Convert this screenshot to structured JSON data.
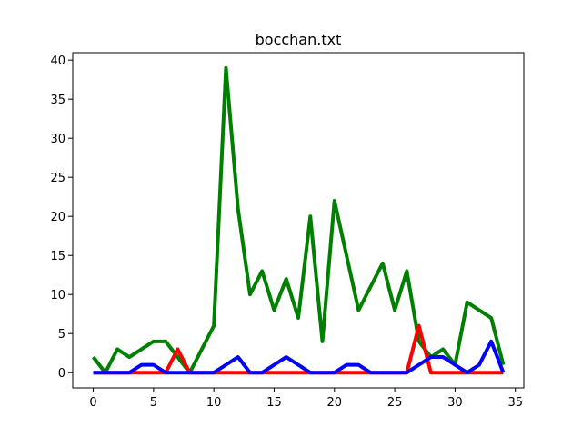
{
  "chart_data": {
    "type": "line",
    "title": "bocchan.txt",
    "x": [
      0,
      1,
      2,
      3,
      4,
      5,
      6,
      7,
      8,
      9,
      10,
      11,
      12,
      13,
      14,
      15,
      16,
      17,
      18,
      19,
      20,
      21,
      22,
      23,
      24,
      25,
      26,
      27,
      28,
      29,
      30,
      31,
      32,
      33,
      34
    ],
    "series": [
      {
        "color": "#008000",
        "values": [
          2,
          0,
          3,
          2,
          3,
          4,
          4,
          2,
          0,
          3,
          6,
          39,
          21,
          10,
          13,
          8,
          12,
          7,
          20,
          4,
          22,
          15,
          8,
          11,
          14,
          8,
          13,
          4,
          2,
          3,
          1,
          9,
          8,
          7,
          1
        ]
      },
      {
        "color": "#ff0000",
        "values": [
          0,
          0,
          0,
          0,
          0,
          0,
          0,
          3,
          0,
          0,
          0,
          0,
          0,
          0,
          0,
          0,
          0,
          0,
          0,
          0,
          0,
          0,
          0,
          0,
          0,
          0,
          0,
          6,
          0,
          0,
          0,
          0,
          0,
          0,
          0
        ]
      },
      {
        "color": "#0000ff",
        "values": [
          0,
          0,
          0,
          0,
          1,
          1,
          0,
          0,
          0,
          0,
          0,
          1,
          2,
          0,
          0,
          1,
          2,
          1,
          0,
          0,
          0,
          1,
          1,
          0,
          0,
          0,
          0,
          1,
          2,
          2,
          1,
          0,
          1,
          4,
          0
        ]
      }
    ],
    "xlim": [
      -1.7,
      35.7
    ],
    "xticks": [
      0,
      5,
      10,
      15,
      20,
      25,
      30,
      35
    ],
    "ylim": [
      -1.95,
      40.95
    ],
    "yticks": [
      0,
      5,
      10,
      15,
      20,
      25,
      30,
      35,
      40
    ],
    "grid": false
  }
}
